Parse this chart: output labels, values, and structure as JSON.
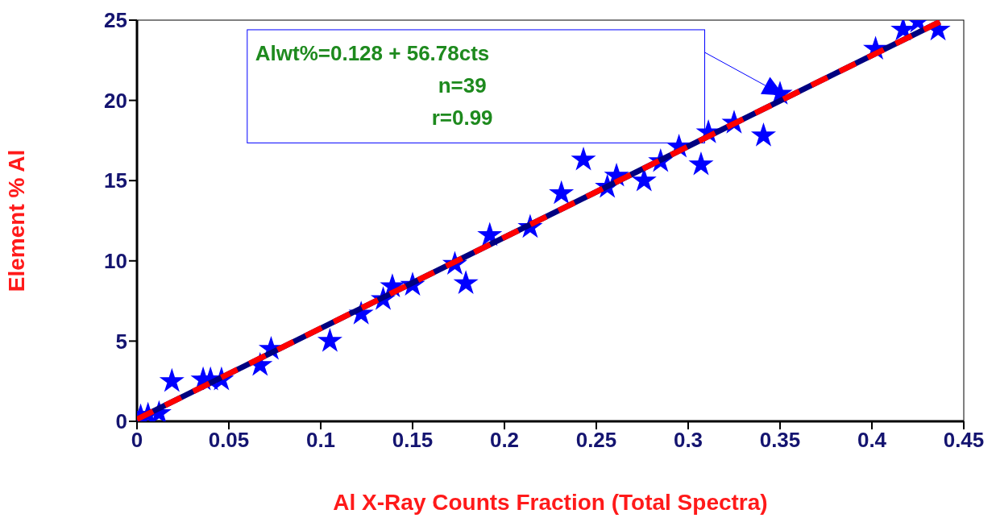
{
  "chart_data": {
    "type": "scatter",
    "xlabel": "Al X-Ray Counts Fraction (Total Spectra)",
    "ylabel": "Element % Al",
    "annotations": [
      "Alwt%=0.128 + 56.78cts",
      "n=39",
      "r=0.99"
    ],
    "xlim": [
      0,
      0.45
    ],
    "xticks": [
      0,
      0.05,
      0.1,
      0.15,
      0.2,
      0.25,
      0.3,
      0.35,
      0.4,
      0.45
    ],
    "ylim": [
      0,
      25
    ],
    "yticks": [
      0,
      5,
      10,
      15,
      20,
      25
    ],
    "grid": false,
    "legend": false,
    "series": [
      {
        "marker": "star",
        "color": "#0000ff",
        "x": [
          0.002,
          0.006,
          0.012,
          0.019,
          0.036,
          0.04,
          0.046,
          0.067,
          0.073,
          0.105,
          0.122,
          0.134,
          0.139,
          0.15,
          0.179,
          0.173,
          0.192,
          0.214,
          0.231,
          0.243,
          0.256,
          0.261,
          0.276,
          0.285,
          0.295,
          0.307,
          0.311,
          0.325,
          0.341,
          0.35,
          0.402,
          0.417,
          0.425,
          0.436
        ],
        "values": [
          0.3,
          0.4,
          0.5,
          2.5,
          2.6,
          2.6,
          2.6,
          3.5,
          4.5,
          5.0,
          6.7,
          7.6,
          8.4,
          8.5,
          8.6,
          9.8,
          11.6,
          12.1,
          14.2,
          16.3,
          14.6,
          15.3,
          15.0,
          16.2,
          17.1,
          16.0,
          18.0,
          18.6,
          17.8,
          20.4,
          23.2,
          24.4,
          24.9,
          24.4
        ]
      },
      {
        "type": "line",
        "color": "#000080",
        "line_style": "solid",
        "x": [
          0,
          0.437
        ],
        "values": [
          0.13,
          24.9
        ]
      },
      {
        "type": "line",
        "color": "#ff0000",
        "line_style": "dashed",
        "x": [
          0,
          0.437
        ],
        "values": [
          0.13,
          24.9
        ]
      }
    ]
  }
}
